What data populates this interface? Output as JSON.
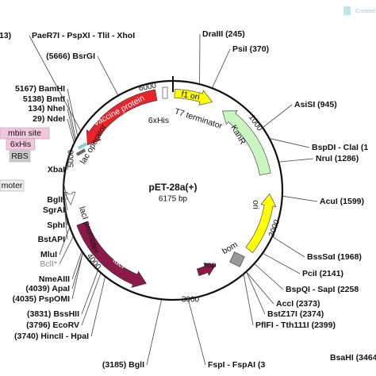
{
  "corner": "Created",
  "map": {
    "name": "pET-28a(+)",
    "length": "6175 bp",
    "ticks": [
      "6000",
      "1000",
      "2000",
      "3000",
      "4000",
      "5000"
    ],
    "features": [
      "Vaccine protein",
      "lac operator",
      "6xHis",
      "T7 terminator",
      "f1 ori",
      "KanR",
      "ori",
      "lacI promoter",
      "lacI",
      "rop",
      "bom"
    ],
    "left_features": [
      "mbin site",
      "6xHis",
      "RBS",
      "moter"
    ],
    "sites": [
      "13)",
      "PaeR7I - PspXI - TliI - XhoI",
      "DraIII (245)",
      "PsiI (370)",
      "(5666) BsrGI",
      "AsiSI (945)",
      "BspDI - ClaI (1",
      "NruI (1286)",
      "AcuI (1599)",
      "BssSαI (1968)",
      "PciI (2141)",
      "BspQI - SapI (2258",
      "AccI (2373)",
      "BstZ17I (2374)",
      "PflFI - Tth111I (2399)",
      "(3185) BglI",
      "FspI - FspAI (3",
      "BsaHI (3464)",
      "5167) BamHI",
      "5138) BmtI",
      "134) NheI",
      "29) NdeI",
      "XbaI",
      "BglII",
      "SgrAI",
      "SphI",
      "BstAPI",
      "MluI",
      "BclI*",
      "NmeAIII",
      "(4039) ApaI",
      "(4035) PspOMI",
      "(3831) BssHII",
      "(3796) EcoRV",
      "(3740) HincII - HpaI"
    ]
  }
}
